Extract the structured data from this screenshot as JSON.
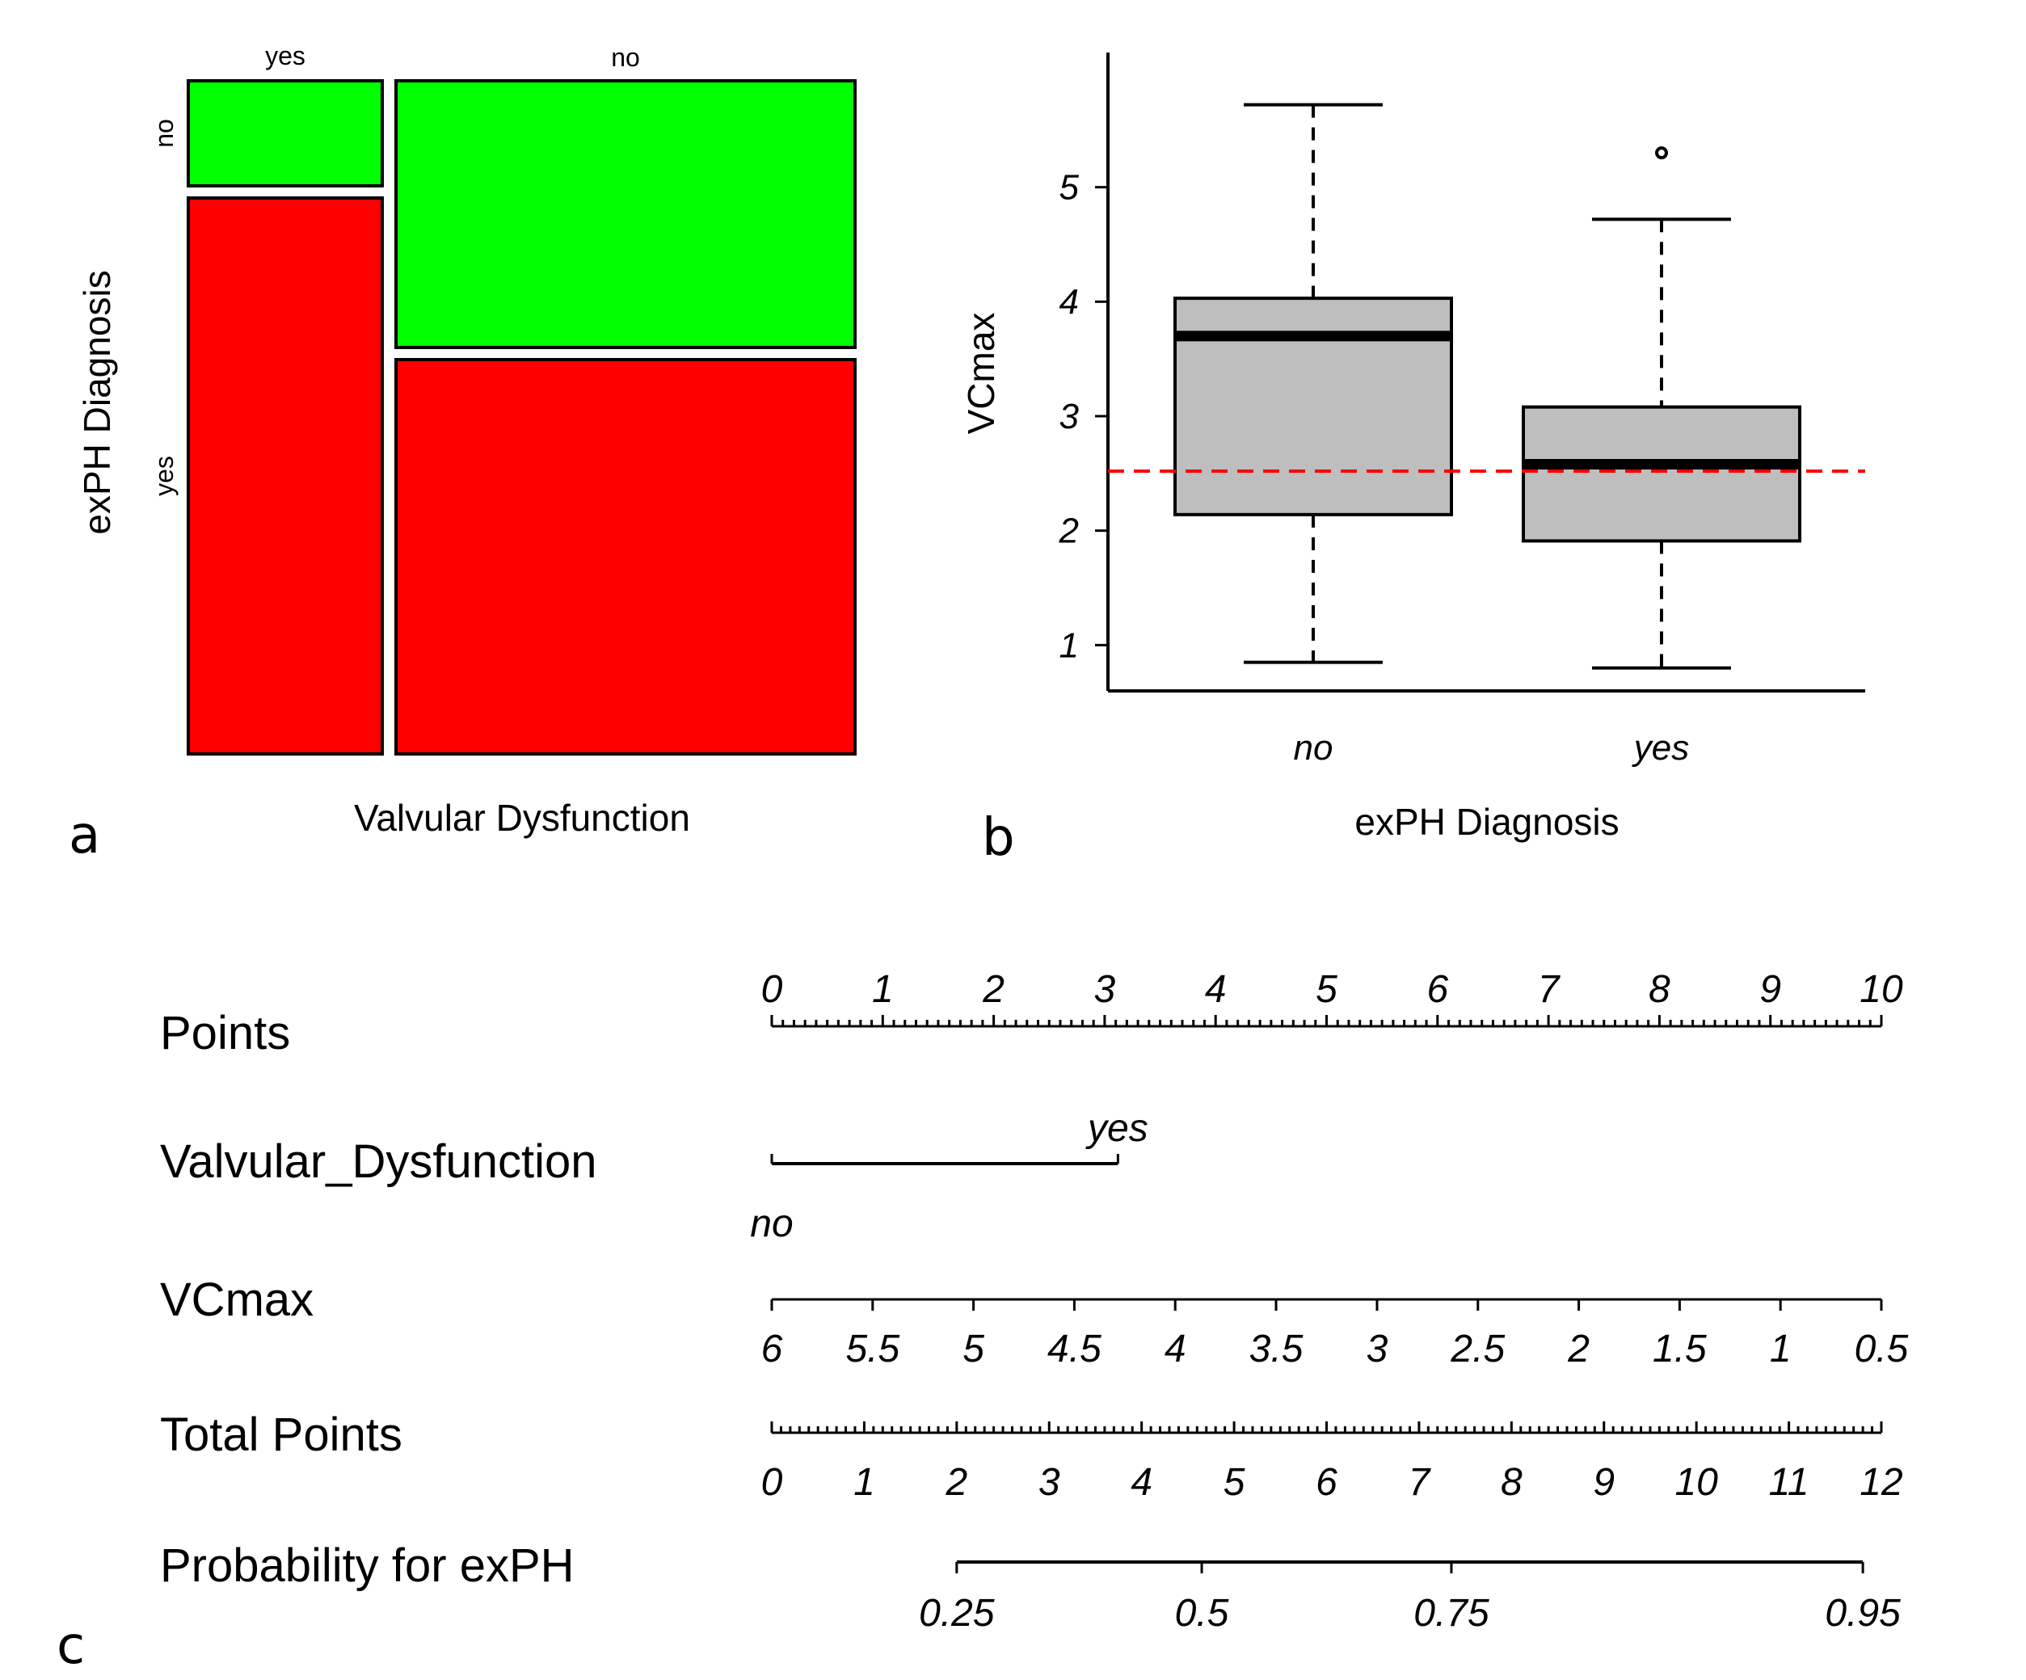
{
  "colors": {
    "green": "#00ff00",
    "red": "#ff0000",
    "box_fill": "#bebebe",
    "reference_line": "#ff0000",
    "ink": "#000000"
  },
  "panels": {
    "a": {
      "letter": "a"
    },
    "b": {
      "letter": "b"
    },
    "c": {
      "letter": "c"
    }
  },
  "chart_data": [
    {
      "panel": "a",
      "type": "mosaic",
      "xlabel": "Valvular Dysfunction",
      "ylabel": "exPH Diagnosis",
      "column_labels": [
        "yes",
        "no"
      ],
      "row_labels": [
        "no",
        "yes"
      ],
      "column_widths": [
        0.285,
        0.715
      ],
      "cells": [
        {
          "valvular": "yes",
          "exPH": "no",
          "fraction": 0.15,
          "color": "#00ff00"
        },
        {
          "valvular": "yes",
          "exPH": "yes",
          "fraction": 0.85,
          "color": "#ff0000"
        },
        {
          "valvular": "no",
          "exPH": "no",
          "fraction": 0.4,
          "color": "#00ff00"
        },
        {
          "valvular": "no",
          "exPH": "yes",
          "fraction": 0.6,
          "color": "#ff0000"
        }
      ]
    },
    {
      "panel": "b",
      "type": "box",
      "xlabel": "exPH Diagnosis",
      "ylabel": "VCmax",
      "ylim": [
        0.6,
        6.0
      ],
      "yticks": [
        1,
        2,
        3,
        4,
        5
      ],
      "reference_line": 2.52,
      "groups": [
        {
          "label": "no",
          "whisker_low": 0.85,
          "q1": 2.14,
          "median": 3.7,
          "q3": 4.03,
          "whisker_high": 5.72,
          "outliers": []
        },
        {
          "label": "yes",
          "whisker_low": 0.8,
          "q1": 1.91,
          "median": 2.58,
          "q3": 3.08,
          "whisker_high": 4.72,
          "outliers": [
            5.3
          ]
        }
      ]
    },
    {
      "panel": "c",
      "type": "nomogram",
      "rows": [
        {
          "label": "Points",
          "kind": "points_scale",
          "tick_labels": [
            "0",
            "1",
            "2",
            "3",
            "4",
            "5",
            "6",
            "7",
            "8",
            "9",
            "10"
          ],
          "points_min": 0,
          "points_max": 10
        },
        {
          "label": "Valvular_Dysfunction",
          "kind": "categorical",
          "levels": [
            {
              "label": "no",
              "points": 0
            },
            {
              "label": "yes",
              "points": 3.12
            }
          ]
        },
        {
          "label": "VCmax",
          "kind": "continuous",
          "tick_labels": [
            "6",
            "5.5",
            "5",
            "4.5",
            "4",
            "3.5",
            "3",
            "2.5",
            "2",
            "1.5",
            "1",
            "0.5"
          ],
          "tick_points": [
            0,
            0.909,
            1.818,
            2.727,
            3.636,
            4.545,
            5.455,
            6.364,
            7.273,
            8.182,
            9.091,
            10
          ]
        },
        {
          "label": "Total Points",
          "kind": "total_scale",
          "tick_labels": [
            "0",
            "1",
            "2",
            "3",
            "4",
            "5",
            "6",
            "7",
            "8",
            "9",
            "10",
            "11",
            "12"
          ],
          "total_min": 0,
          "total_max": 12
        },
        {
          "label": "Probability for exPH",
          "kind": "probability",
          "tick_labels": [
            "0.25",
            "0.5",
            "0.75",
            "0.95"
          ],
          "tick_total_points": [
            2.0,
            4.65,
            7.35,
            11.8
          ]
        }
      ]
    }
  ]
}
